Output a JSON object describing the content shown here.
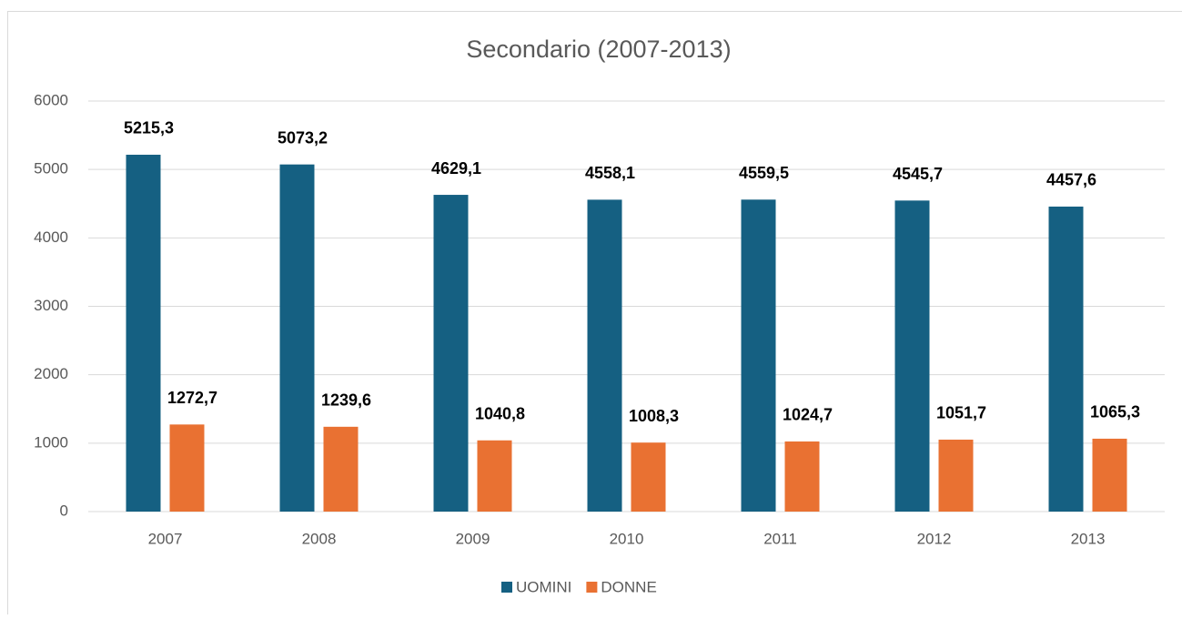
{
  "chart_data": {
    "type": "bar",
    "title": "Secondario (2007-2013)",
    "categories": [
      "2007",
      "2008",
      "2009",
      "2010",
      "2011",
      "2012",
      "2013"
    ],
    "series": [
      {
        "name": "UOMINI",
        "color": "#156082",
        "values": [
          5215.3,
          5073.2,
          4629.1,
          4558.1,
          4559.5,
          4545.7,
          4457.6
        ],
        "value_labels": [
          "5215,3",
          "5073,2",
          "4629,1",
          "4558,1",
          "4559,5",
          "4545,7",
          "4457,6"
        ]
      },
      {
        "name": "DONNE",
        "color": "#e97132",
        "values": [
          1272.7,
          1239.6,
          1040.8,
          1008.3,
          1024.7,
          1051.7,
          1065.3
        ],
        "value_labels": [
          "1272,7",
          "1239,6",
          "1040,8",
          "1008,3",
          "1024,7",
          "1051,7",
          "1065,3"
        ]
      }
    ],
    "ylim": [
      0,
      6000
    ],
    "yticks": [
      0,
      1000,
      2000,
      3000,
      4000,
      5000,
      6000
    ],
    "grid": true,
    "legend": "bottom"
  }
}
